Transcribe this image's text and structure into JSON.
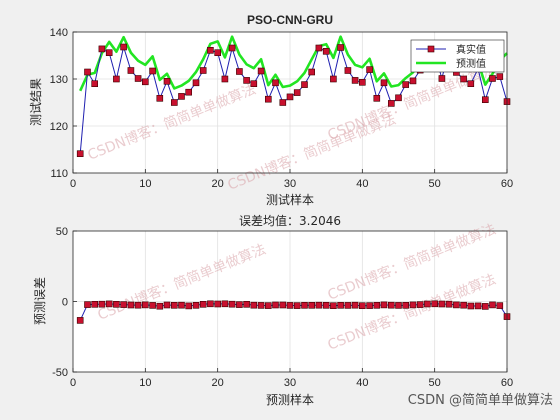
{
  "chart_data": [
    {
      "type": "line",
      "title": "PSO-CNN-GRU",
      "xlabel": "测试样本",
      "ylabel": "测试结果",
      "xlim": [
        0,
        60
      ],
      "ylim": [
        110,
        140
      ],
      "xticks": [
        0,
        10,
        20,
        30,
        40,
        50,
        60
      ],
      "yticks": [
        110,
        120,
        130,
        140
      ],
      "grid": true,
      "legend_position": "top-right",
      "x": [
        1,
        2,
        3,
        4,
        5,
        6,
        7,
        8,
        9,
        10,
        11,
        12,
        13,
        14,
        15,
        16,
        17,
        18,
        19,
        20,
        21,
        22,
        23,
        24,
        25,
        26,
        27,
        28,
        29,
        30,
        31,
        32,
        33,
        34,
        35,
        36,
        37,
        38,
        39,
        40,
        41,
        42,
        43,
        44,
        45,
        46,
        47,
        48,
        49,
        50,
        51,
        52,
        53,
        54,
        55,
        56,
        57,
        58,
        59,
        60
      ],
      "series": [
        {
          "name": "真实值",
          "color": "#1f1fb0",
          "marker_color": "#c8102e",
          "values": [
            114.1,
            131.5,
            129.0,
            136.4,
            135.6,
            130.0,
            136.8,
            131.8,
            130.1,
            129.4,
            131.7,
            125.9,
            129.5,
            125.0,
            126.3,
            127.2,
            129.2,
            131.8,
            136.1,
            135.6,
            130.0,
            136.6,
            131.6,
            129.7,
            129.0,
            131.7,
            125.7,
            129.2,
            125.0,
            126.2,
            127.1,
            128.8,
            131.5,
            136.6,
            135.9,
            130.0,
            136.7,
            131.8,
            129.7,
            129.3,
            132.0,
            125.9,
            129.2,
            124.8,
            126.0,
            128.8,
            129.6,
            131.9,
            136.2,
            135.5,
            130.1,
            136.5,
            131.4,
            130.0,
            129.0,
            132.2,
            125.6,
            130.1,
            130.5,
            125.2
          ]
        },
        {
          "name": "预测值",
          "color": "#22e522",
          "values": [
            127.5,
            130.9,
            131.3,
            135.5,
            137.9,
            135.8,
            138.9,
            135.6,
            133.9,
            133.0,
            134.8,
            129.8,
            131.1,
            128.0,
            128.6,
            129.6,
            131.5,
            134.2,
            137.5,
            138.0,
            134.6,
            139.0,
            135.2,
            133.1,
            132.3,
            134.2,
            128.7,
            130.9,
            128.3,
            128.6,
            129.5,
            131.3,
            134.2,
            137.0,
            137.4,
            134.5,
            139.0,
            135.2,
            133.0,
            132.5,
            134.3,
            129.5,
            131.2,
            128.4,
            128.7,
            130.2,
            131.4,
            133.6,
            137.0,
            137.3,
            133.7,
            138.0,
            134.6,
            132.4,
            131.9,
            133.6,
            128.8,
            131.1,
            134.0,
            135.5
          ]
        }
      ]
    },
    {
      "type": "line",
      "title": "误差均值：3.2046",
      "xlabel": "预测样本",
      "ylabel": "预测误差",
      "xlim": [
        0,
        60
      ],
      "ylim": [
        -50,
        50
      ],
      "xticks": [
        0,
        10,
        20,
        30,
        40,
        50,
        60
      ],
      "yticks": [
        -50,
        0,
        50
      ],
      "grid": true,
      "x": [
        1,
        2,
        3,
        4,
        5,
        6,
        7,
        8,
        9,
        10,
        11,
        12,
        13,
        14,
        15,
        16,
        17,
        18,
        19,
        20,
        21,
        22,
        23,
        24,
        25,
        26,
        27,
        28,
        29,
        30,
        31,
        32,
        33,
        34,
        35,
        36,
        37,
        38,
        39,
        40,
        41,
        42,
        43,
        44,
        45,
        46,
        47,
        48,
        49,
        50,
        51,
        52,
        53,
        54,
        55,
        56,
        57,
        58,
        59,
        60
      ],
      "series": [
        {
          "name": "预测误差",
          "color": "#1f1fb0",
          "marker_color": "#c8102e",
          "values": [
            -13.4,
            -2.2,
            -2.0,
            -1.9,
            -1.7,
            -2.0,
            -2.2,
            -2.5,
            -2.6,
            -2.4,
            -2.8,
            -3.3,
            -2.5,
            -2.7,
            -2.6,
            -3.1,
            -2.7,
            -2.0,
            -1.6,
            -1.8,
            -1.6,
            -1.9,
            -2.2,
            -2.0,
            -2.6,
            -2.8,
            -2.9,
            -2.5,
            -2.5,
            -2.8,
            -2.9,
            -2.7,
            -2.7,
            -2.6,
            -2.7,
            -3.0,
            -2.7,
            -2.8,
            -2.6,
            -3.0,
            -2.9,
            -2.7,
            -2.4,
            -2.6,
            -2.8,
            -2.7,
            -2.4,
            -2.2,
            -1.8,
            -1.6,
            -1.8,
            -1.9,
            -2.4,
            -2.6,
            -3.2,
            -3.1,
            -3.5,
            -2.4,
            -2.9,
            -10.7
          ]
        }
      ]
    }
  ],
  "watermarks": {
    "diagonal": "CSDN博客：简简单单做算法",
    "footer": "CSDN @简简单单做算法"
  }
}
